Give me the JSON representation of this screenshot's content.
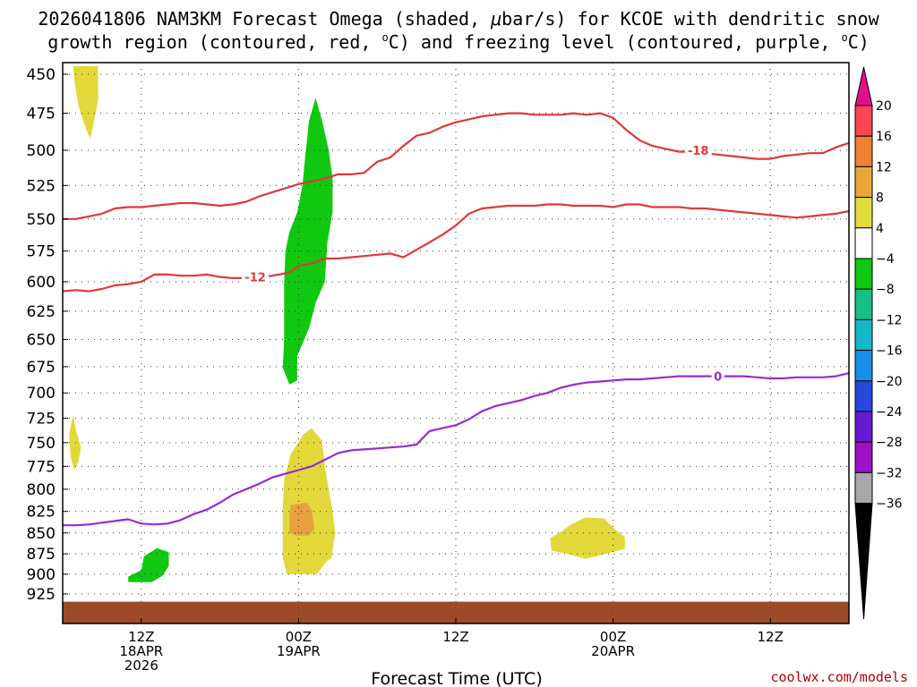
{
  "chart_data": {
    "type": "contour-time-height",
    "title_line1": "2026041806 NAM3KM Forecast Omega (shaded, ",
    "title_mu": "μ",
    "title_line1_end": "bar/s) for KCOE with dendritic snow",
    "title_line2": "growth region (contoured, red, ",
    "title_deg": "o",
    "title_line2_mid": "C) and freezing level (contoured, purple, ",
    "title_line2_end": "C)",
    "xlabel": "Forecast Time (UTC)",
    "credit": "coolwx.com/models",
    "x_unit": "forecast hour",
    "xlim": [
      0,
      60
    ],
    "y_unit": "hPa",
    "ylim": [
      445,
      937
    ],
    "y_ticks": [
      450,
      475,
      500,
      525,
      550,
      575,
      600,
      625,
      650,
      675,
      700,
      725,
      750,
      775,
      800,
      825,
      850,
      875,
      900,
      925
    ],
    "x_ticks": [
      {
        "hour": 6,
        "line1": "12Z",
        "line2": "18APR",
        "line3": "2026"
      },
      {
        "hour": 18,
        "line1": "00Z",
        "line2": "19APR",
        "line3": ""
      },
      {
        "hour": 30,
        "line1": "12Z",
        "line2": "",
        "line3": ""
      },
      {
        "hour": 42,
        "line1": "00Z",
        "line2": "20APR",
        "line3": ""
      },
      {
        "hour": 54,
        "line1": "12Z",
        "line2": "",
        "line3": ""
      }
    ],
    "contours": [
      {
        "name": "dgz-minus-12",
        "color": "#e03838",
        "label": "-12",
        "label_at": [
          14.7,
          596
        ],
        "points": [
          [
            0,
            608
          ],
          [
            1,
            607
          ],
          [
            2,
            608
          ],
          [
            3,
            606
          ],
          [
            4,
            603
          ],
          [
            5,
            602
          ],
          [
            6,
            600
          ],
          [
            7,
            594
          ],
          [
            8,
            594
          ],
          [
            9,
            595
          ],
          [
            10,
            595
          ],
          [
            11,
            594
          ],
          [
            12,
            596
          ],
          [
            13,
            597
          ],
          [
            14,
            597
          ],
          [
            15,
            596
          ],
          [
            16,
            595
          ],
          [
            17,
            593
          ],
          [
            17.5,
            591
          ],
          [
            18,
            587
          ],
          [
            19,
            585
          ],
          [
            20,
            581
          ],
          [
            21,
            581
          ],
          [
            22,
            580
          ],
          [
            23,
            579
          ],
          [
            24,
            578
          ],
          [
            25,
            577
          ],
          [
            26,
            580
          ],
          [
            27,
            574
          ],
          [
            28,
            568
          ],
          [
            29,
            562
          ],
          [
            30,
            555
          ],
          [
            31,
            546
          ],
          [
            32,
            542
          ],
          [
            33,
            541
          ],
          [
            34,
            540
          ],
          [
            35,
            540
          ],
          [
            36,
            540
          ],
          [
            37,
            539
          ],
          [
            38,
            539
          ],
          [
            39,
            540
          ],
          [
            40,
            540
          ],
          [
            41,
            540
          ],
          [
            42,
            541
          ],
          [
            43,
            539
          ],
          [
            44,
            539
          ],
          [
            45,
            541
          ],
          [
            46,
            541
          ],
          [
            47,
            541
          ],
          [
            48,
            542
          ],
          [
            49,
            542
          ],
          [
            50,
            543
          ],
          [
            51,
            544
          ],
          [
            52,
            545
          ],
          [
            53,
            546
          ],
          [
            54,
            547
          ],
          [
            55,
            548
          ],
          [
            56,
            549
          ],
          [
            57,
            548
          ],
          [
            58,
            547
          ],
          [
            59,
            546
          ],
          [
            60,
            544
          ]
        ]
      },
      {
        "name": "dgz-minus-18",
        "color": "#e03838",
        "label": "-18",
        "label_at": [
          48.5,
          500
        ],
        "points": [
          [
            0,
            550
          ],
          [
            1,
            550
          ],
          [
            2,
            548
          ],
          [
            3,
            546
          ],
          [
            4,
            542
          ],
          [
            5,
            541
          ],
          [
            6,
            541
          ],
          [
            7,
            540
          ],
          [
            8,
            539
          ],
          [
            9,
            538
          ],
          [
            10,
            538
          ],
          [
            11,
            539
          ],
          [
            12,
            540
          ],
          [
            13,
            539
          ],
          [
            14,
            537
          ],
          [
            15,
            533
          ],
          [
            16,
            530
          ],
          [
            17,
            527
          ],
          [
            18,
            524
          ],
          [
            19,
            522
          ],
          [
            20,
            520
          ],
          [
            21,
            517
          ],
          [
            22,
            517
          ],
          [
            23,
            516
          ],
          [
            24,
            508
          ],
          [
            25,
            505
          ],
          [
            26,
            497
          ],
          [
            27,
            490
          ],
          [
            28,
            488
          ],
          [
            29,
            484
          ],
          [
            30,
            481
          ],
          [
            31,
            479
          ],
          [
            32,
            477
          ],
          [
            33,
            476
          ],
          [
            34,
            475
          ],
          [
            35,
            475
          ],
          [
            36,
            476
          ],
          [
            37,
            476
          ],
          [
            38,
            476
          ],
          [
            39,
            475
          ],
          [
            40,
            476
          ],
          [
            41,
            475
          ],
          [
            42,
            478
          ],
          [
            43,
            486
          ],
          [
            44,
            493
          ],
          [
            45,
            497
          ],
          [
            46,
            499
          ],
          [
            47,
            501
          ],
          [
            48,
            501
          ],
          [
            49,
            502
          ],
          [
            50,
            503
          ],
          [
            51,
            504
          ],
          [
            52,
            505
          ],
          [
            53,
            506
          ],
          [
            54,
            506
          ],
          [
            55,
            504
          ],
          [
            56,
            503
          ],
          [
            57,
            502
          ],
          [
            58,
            502
          ],
          [
            59,
            498
          ],
          [
            60,
            495
          ]
        ]
      },
      {
        "name": "freezing-level-0",
        "color": "#9a2ad0",
        "label": "0",
        "label_at": [
          50,
          684
        ],
        "points": [
          [
            0,
            841
          ],
          [
            1,
            841
          ],
          [
            2,
            840
          ],
          [
            3,
            838
          ],
          [
            4,
            836
          ],
          [
            5,
            834
          ],
          [
            6,
            839
          ],
          [
            7,
            840
          ],
          [
            8,
            839
          ],
          [
            9,
            835
          ],
          [
            10,
            828
          ],
          [
            11,
            823
          ],
          [
            12,
            815
          ],
          [
            13,
            806
          ],
          [
            14,
            800
          ],
          [
            15,
            794
          ],
          [
            16,
            787
          ],
          [
            17,
            783
          ],
          [
            18,
            779
          ],
          [
            19,
            775
          ],
          [
            20,
            768
          ],
          [
            21,
            761
          ],
          [
            22,
            758
          ],
          [
            23,
            757
          ],
          [
            24,
            756
          ],
          [
            25,
            755
          ],
          [
            26,
            754
          ],
          [
            27,
            752
          ],
          [
            28,
            738
          ],
          [
            29,
            735
          ],
          [
            30,
            732
          ],
          [
            31,
            726
          ],
          [
            32,
            718
          ],
          [
            33,
            713
          ],
          [
            34,
            710
          ],
          [
            35,
            707
          ],
          [
            36,
            703
          ],
          [
            37,
            700
          ],
          [
            38,
            695
          ],
          [
            39,
            692
          ],
          [
            40,
            690
          ],
          [
            41,
            689
          ],
          [
            42,
            688
          ],
          [
            43,
            687
          ],
          [
            44,
            687
          ],
          [
            45,
            686
          ],
          [
            46,
            685
          ],
          [
            47,
            684
          ],
          [
            48,
            684
          ],
          [
            49,
            684
          ],
          [
            50,
            684
          ],
          [
            51,
            684
          ],
          [
            52,
            684
          ],
          [
            53,
            685
          ],
          [
            54,
            686
          ],
          [
            55,
            686
          ],
          [
            56,
            685
          ],
          [
            57,
            685
          ],
          [
            58,
            685
          ],
          [
            59,
            684
          ],
          [
            60,
            681
          ]
        ]
      }
    ],
    "omega_regions": [
      {
        "name": "yellow-plume-top-left",
        "value_range": "4 to 8",
        "color": "#e2d83a",
        "points": [
          [
            0.8,
            445
          ],
          [
            2.7,
            445
          ],
          [
            2.7,
            466
          ],
          [
            2.4,
            480
          ],
          [
            2.1,
            492
          ],
          [
            1.8,
            486
          ],
          [
            1.2,
            470
          ],
          [
            0.9,
            455
          ]
        ]
      },
      {
        "name": "yellow-blob-left",
        "value_range": "4 to 8",
        "color": "#e2d83a",
        "points": [
          [
            0.5,
            740
          ],
          [
            0.8,
            722
          ],
          [
            1.0,
            736
          ],
          [
            1.4,
            755
          ],
          [
            1.2,
            770
          ],
          [
            0.9,
            779
          ],
          [
            0.6,
            765
          ]
        ]
      },
      {
        "name": "green-column",
        "value_range": "-8 to -4",
        "color": "#10c810",
        "points": [
          [
            16.8,
            676
          ],
          [
            16.9,
            650
          ],
          [
            16.9,
            625
          ],
          [
            16.9,
            600
          ],
          [
            17.0,
            575
          ],
          [
            17.3,
            560
          ],
          [
            17.9,
            545
          ],
          [
            18.3,
            525
          ],
          [
            18.5,
            505
          ],
          [
            18.8,
            480
          ],
          [
            19.3,
            465
          ],
          [
            19.8,
            480
          ],
          [
            20.3,
            500
          ],
          [
            20.6,
            520
          ],
          [
            20.6,
            545
          ],
          [
            20.2,
            568
          ],
          [
            20.0,
            600
          ],
          [
            19.3,
            618
          ],
          [
            18.8,
            640
          ],
          [
            17.9,
            665
          ],
          [
            17.9,
            688
          ],
          [
            17.3,
            692
          ]
        ]
      },
      {
        "name": "yellow-blob-center",
        "value_range": "4 to 8",
        "color": "#e2d83a",
        "points": [
          [
            16.8,
            880
          ],
          [
            16.8,
            850
          ],
          [
            16.8,
            820
          ],
          [
            16.9,
            790
          ],
          [
            17.4,
            762
          ],
          [
            18.4,
            741
          ],
          [
            19.0,
            735
          ],
          [
            19.8,
            748
          ],
          [
            20.0,
            775
          ],
          [
            20.3,
            800
          ],
          [
            20.6,
            825
          ],
          [
            20.8,
            850
          ],
          [
            20.5,
            880
          ],
          [
            20.1,
            885
          ],
          [
            19.4,
            900
          ],
          [
            17.1,
            900
          ]
        ]
      },
      {
        "name": "orange-core",
        "value_range": "8 to 12",
        "color": "#e8a040",
        "points": [
          [
            17.3,
            850
          ],
          [
            17.3,
            830
          ],
          [
            17.4,
            818
          ],
          [
            18.6,
            815
          ],
          [
            19.0,
            823
          ],
          [
            19.2,
            845
          ],
          [
            18.8,
            853
          ],
          [
            17.8,
            853
          ]
        ]
      },
      {
        "name": "green-blob-bottom-left",
        "value_range": "-8 to -4",
        "color": "#10c810",
        "points": [
          [
            6.0,
            895
          ],
          [
            6.2,
            878
          ],
          [
            7.2,
            868
          ],
          [
            8.1,
            873
          ],
          [
            8.1,
            890
          ],
          [
            7.6,
            902
          ],
          [
            6.8,
            910
          ],
          [
            5.0,
            910
          ],
          [
            5.0,
            903
          ]
        ]
      },
      {
        "name": "yellow-blob-right",
        "value_range": "4 to 8",
        "color": "#e2d83a",
        "points": [
          [
            37.2,
            856
          ],
          [
            37.9,
            850
          ],
          [
            38.8,
            840
          ],
          [
            39.9,
            832
          ],
          [
            41.3,
            833
          ],
          [
            42.1,
            845
          ],
          [
            42.9,
            855
          ],
          [
            42.9,
            869
          ],
          [
            41.4,
            875
          ],
          [
            39.9,
            881
          ],
          [
            38.8,
            876
          ],
          [
            37.3,
            871
          ]
        ]
      }
    ],
    "terrain": {
      "color": "#9c4a2a",
      "pressure_hpa": 935
    },
    "colorbar": {
      "unit": "μbar/s",
      "labels": [
        "20",
        "16",
        "12",
        "8",
        "4",
        "−4",
        "−8",
        "−12",
        "−16",
        "−20",
        "−24",
        "−28",
        "−32",
        "−36"
      ],
      "bins": [
        {
          "range": "16 to 20",
          "color": "#ff4454"
        },
        {
          "range": "12 to 16",
          "color": "#f08032"
        },
        {
          "range": "8 to 12",
          "color": "#e8a838"
        },
        {
          "range": "4 to 8",
          "color": "#e0dc3c"
        },
        {
          "range": "-4 to 4",
          "color": "#ffffff"
        },
        {
          "range": "-8 to -4",
          "color": "#10c810"
        },
        {
          "range": "-12 to -8",
          "color": "#14c088"
        },
        {
          "range": "-16 to -12",
          "color": "#14b8c8"
        },
        {
          "range": "-20 to -16",
          "color": "#1890e8"
        },
        {
          "range": "-24 to -20",
          "color": "#2448e0"
        },
        {
          "range": "-28 to -24",
          "color": "#6818d0"
        },
        {
          "range": "-32 to -28",
          "color": "#9c10c8"
        },
        {
          "range": "-36 to -32",
          "color": "#a8a8a8"
        }
      ],
      "top_arrow_color": "#e0108c",
      "bottom_arrow_color": "#000000"
    }
  }
}
